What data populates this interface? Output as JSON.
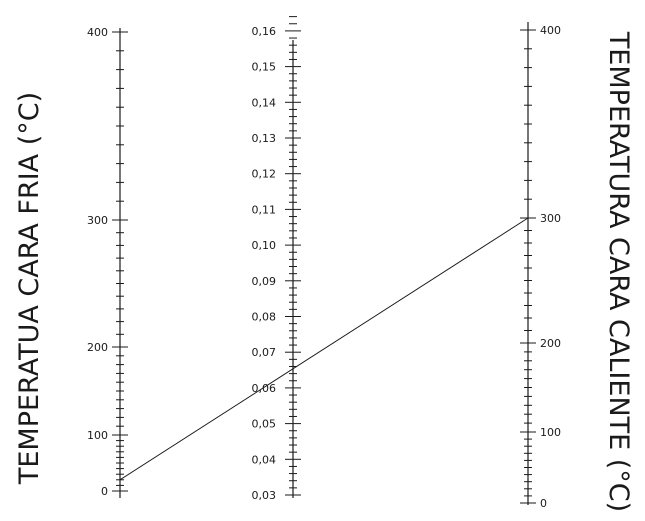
{
  "diagram": {
    "type": "nomogram",
    "left_axis": {
      "title": "TEMPERATUA CARA FRIA (°C)",
      "min": 0,
      "max": 400,
      "labels": [
        "0",
        "100",
        "200",
        "300",
        "400"
      ],
      "label_values": [
        0,
        100,
        200,
        300,
        400
      ]
    },
    "middle_axis": {
      "min": 0.03,
      "max": 0.165,
      "labels": [
        "0,03",
        "0,04",
        "0,05",
        "0,06",
        "0,07",
        "0,08",
        "0,09",
        "0,10",
        "0,11",
        "0,12",
        "0,13",
        "0,14",
        "0,15",
        "0,16"
      ],
      "label_values": [
        0.03,
        0.04,
        0.05,
        0.06,
        0.07,
        0.08,
        0.09,
        0.1,
        0.11,
        0.12,
        0.13,
        0.14,
        0.15,
        0.16
      ]
    },
    "right_axis": {
      "title": "TEMPERATURA CARA CALIENTE (°C)",
      "min": 0,
      "max": 400,
      "labels": [
        "0",
        "100",
        "200",
        "300",
        "400"
      ],
      "label_values": [
        0,
        100,
        200,
        300,
        400
      ]
    },
    "isopleth": {
      "left_value": 20,
      "middle_value": 0.066,
      "right_value": 300
    }
  }
}
